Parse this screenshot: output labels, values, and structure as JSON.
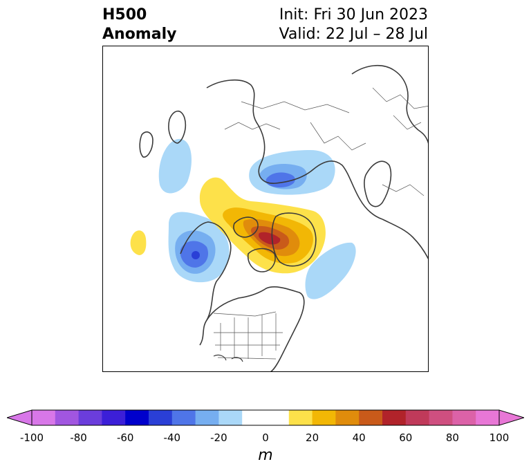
{
  "header": {
    "title_line1": "H500",
    "title_line2": "Anomaly",
    "init_text": "Init: Fri 30 Jun 2023",
    "valid_text": "Valid: 22 Jul – 28 Jul"
  },
  "map": {
    "projection": "north polar stereographic",
    "variable": "500 hPa geopotential height anomaly",
    "features": [
      {
        "name": "ridge-greenland-canada",
        "sign": "positive",
        "peak_m": 60
      },
      {
        "name": "trough-gulf-of-alaska",
        "sign": "negative",
        "peak_m": -40
      },
      {
        "name": "trough-north-of-siberia",
        "sign": "negative",
        "peak_m": -40
      },
      {
        "name": "trough-north-atlantic",
        "sign": "negative",
        "peak_m": -20
      },
      {
        "name": "trough-west-russia",
        "sign": "negative",
        "peak_m": -20
      },
      {
        "name": "ridge-north-pacific",
        "sign": "positive",
        "peak_m": 20
      }
    ]
  },
  "colorbar": {
    "ticks": [
      "-100",
      "-80",
      "-60",
      "-40",
      "-20",
      "0",
      "20",
      "40",
      "60",
      "80",
      "100"
    ],
    "unit": "m",
    "colors": [
      "#d877e8",
      "#a156e0",
      "#6b3ddc",
      "#3c1fd8",
      "#0000cc",
      "#2a3fd6",
      "#4f75e8",
      "#76aef0",
      "#aad8f8",
      "#ffffff",
      "#ffffff",
      "#fde14a",
      "#f2b705",
      "#e08c0c",
      "#c95a1a",
      "#b1232a",
      "#c03a5a",
      "#cf4f80",
      "#dc62a8",
      "#e877d6"
    ]
  }
}
